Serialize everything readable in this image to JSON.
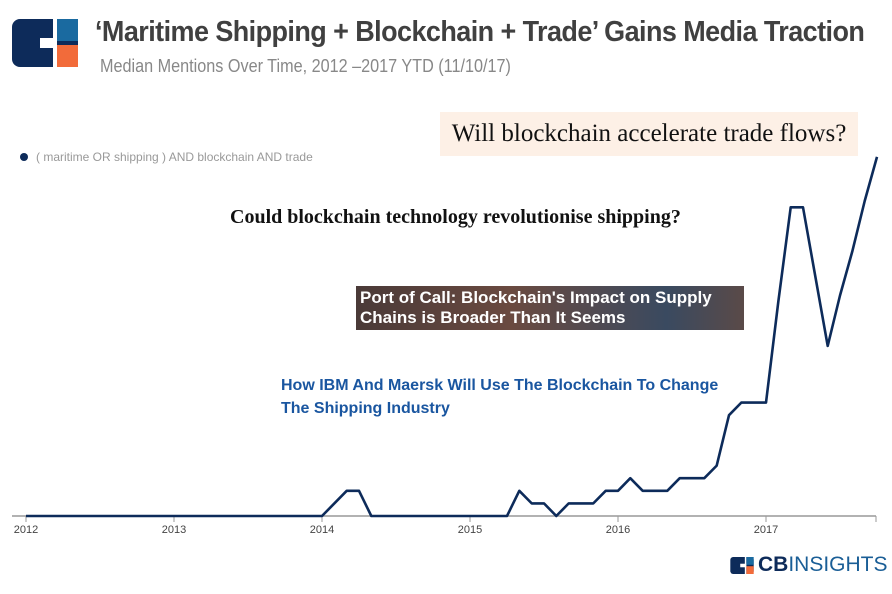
{
  "header": {
    "title": "‘Maritime Shipping + Blockchain + Trade’ Gains Media Traction",
    "subtitle": "Median Mentions Over Time, 2012 –2017 YTD  (11/10/17)"
  },
  "colors": {
    "line": "#0d2b5a",
    "logo_navy": "#0d2b5a",
    "logo_blue": "#1a6aa0",
    "logo_orange": "#f26b3a",
    "annotation_bg": "#fdf0e6",
    "headline_blue": "#1a56a0"
  },
  "annotations": [
    {
      "text": "Will blockchain accelerate trade flows?"
    },
    {
      "text": "Could blockchain technology revolutionise shipping?"
    },
    {
      "text": "Port of Call: Blockchain's Impact on Supply Chains is Broader Than It Seems"
    },
    {
      "text": "How IBM And Maersk Will Use The Blockchain To Change The Shipping Industry"
    }
  ],
  "brand": {
    "cb": "CB",
    "insights": "INSIGHTS"
  },
  "chart_data": {
    "type": "line",
    "title": "‘Maritime Shipping + Blockchain + Trade’ Gains Media Traction",
    "subtitle": "Median Mentions Over Time, 2012 –2017 YTD  (11/10/17)",
    "xlabel": "",
    "ylabel": "",
    "x_ticks": [
      "2012",
      "2013",
      "2014",
      "2015",
      "2016",
      "2017"
    ],
    "xlim": [
      "2012-01",
      "2017-10"
    ],
    "y_axis_shown": false,
    "grid": false,
    "legend_position": "top-left",
    "series": [
      {
        "name": "( maritime OR shipping ) AND blockchain AND trade",
        "color": "#0d2b5a",
        "points": [
          [
            "2012-01",
            0
          ],
          [
            "2014-01",
            0
          ],
          [
            "2014-03",
            2
          ],
          [
            "2014-04",
            2
          ],
          [
            "2014-05",
            0
          ],
          [
            "2015-04",
            0
          ],
          [
            "2015-05",
            2
          ],
          [
            "2015-06",
            1
          ],
          [
            "2015-07",
            1
          ],
          [
            "2015-08",
            0
          ],
          [
            "2015-09",
            1
          ],
          [
            "2015-10",
            1
          ],
          [
            "2015-11",
            1
          ],
          [
            "2015-12",
            2
          ],
          [
            "2016-01",
            2
          ],
          [
            "2016-02",
            3
          ],
          [
            "2016-03",
            2
          ],
          [
            "2016-04",
            2
          ],
          [
            "2016-05",
            2
          ],
          [
            "2016-06",
            3
          ],
          [
            "2016-07",
            3
          ],
          [
            "2016-08",
            3
          ],
          [
            "2016-09",
            4
          ],
          [
            "2016-10",
            8
          ],
          [
            "2016-11",
            9
          ],
          [
            "2016-12",
            9
          ],
          [
            "2017-01",
            9
          ],
          [
            "2017-02",
            17
          ],
          [
            "2017-03",
            24.5
          ],
          [
            "2017-04",
            24.5
          ],
          [
            "2017-06",
            13.5
          ],
          [
            "2017-07",
            17.5
          ],
          [
            "2017-08",
            21
          ],
          [
            "2017-09",
            25
          ],
          [
            "2017-10",
            28.5
          ]
        ]
      }
    ]
  }
}
